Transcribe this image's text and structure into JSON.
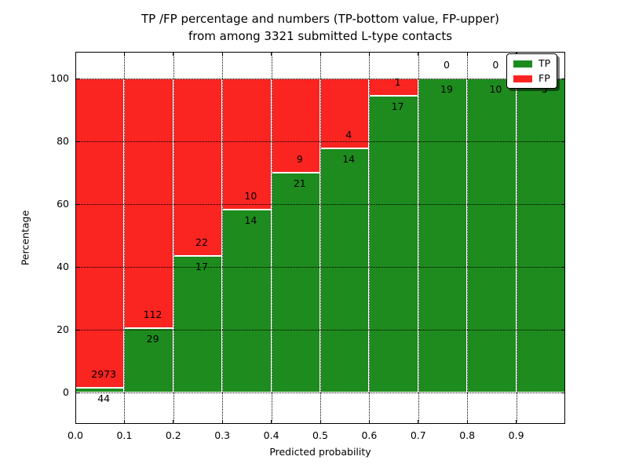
{
  "title": {
    "line1": "TP /FP percentage and numbers (TP-bottom value, FP-upper)",
    "line2": "from among 3321 submitted L-type contacts"
  },
  "axes": {
    "xlabel": "Predicted probability",
    "ylabel": "Percentage",
    "x_tick_labels": [
      "0.0",
      "0.1",
      "0.2",
      "0.3",
      "0.4",
      "0.5",
      "0.6",
      "0.7",
      "0.8",
      "0.9"
    ],
    "y_tick_labels": [
      "0",
      "20",
      "40",
      "60",
      "80",
      "100"
    ]
  },
  "legend": {
    "items": [
      {
        "label": "TP",
        "color": "#1e8b1e"
      },
      {
        "label": "FP",
        "color": "#fa2421"
      }
    ]
  },
  "colors": {
    "tp_green": "#1e8b1e",
    "fp_red": "#fa2421",
    "grid": "#000000",
    "bar_edge": "#ffffff"
  },
  "chart_data": {
    "type": "bar",
    "stacked": true,
    "normalized": "percent of each probability bin",
    "title": "TP /FP percentage and numbers (TP-bottom value, FP-upper) from among 3321 submitted L-type contacts",
    "xlabel": "Predicted probability",
    "ylabel": "Percentage",
    "x_bin_edges": [
      0.0,
      0.1,
      0.2,
      0.3,
      0.4,
      0.5,
      0.6,
      0.7,
      0.8,
      0.9,
      1.0
    ],
    "categories": [
      "0.0-0.1",
      "0.1-0.2",
      "0.2-0.3",
      "0.3-0.4",
      "0.4-0.5",
      "0.5-0.6",
      "0.6-0.7",
      "0.7-0.8",
      "0.8-0.9",
      "0.9-1.0"
    ],
    "series": [
      {
        "name": "TP",
        "color": "#1e8b1e",
        "counts": [
          44,
          29,
          17,
          14,
          21,
          14,
          17,
          19,
          10,
          5
        ],
        "percent": [
          1.459,
          20.567,
          43.59,
          58.333,
          70.0,
          77.778,
          94.444,
          100.0,
          100.0,
          100.0
        ]
      },
      {
        "name": "FP",
        "color": "#fa2421",
        "counts": [
          2973,
          112,
          22,
          10,
          9,
          4,
          1,
          0,
          0,
          0
        ],
        "percent": [
          98.541,
          79.433,
          56.41,
          41.667,
          30.0,
          22.222,
          5.556,
          0.0,
          0.0,
          0.0
        ]
      }
    ],
    "bar_value_labels": {
      "fp": [
        "2973",
        "112",
        "22",
        "10",
        "9",
        "4",
        "1",
        "0",
        "0",
        ""
      ],
      "tp": [
        "44",
        "29",
        "17",
        "14",
        "21",
        "14",
        "17",
        "19",
        "10",
        "5"
      ]
    },
    "total_contacts": 3321,
    "ylim": [
      -10,
      108.5
    ],
    "y_ticks": [
      0,
      20,
      40,
      60,
      80,
      100
    ],
    "grid": "dotted black, both axes",
    "legend_position": "upper right"
  }
}
